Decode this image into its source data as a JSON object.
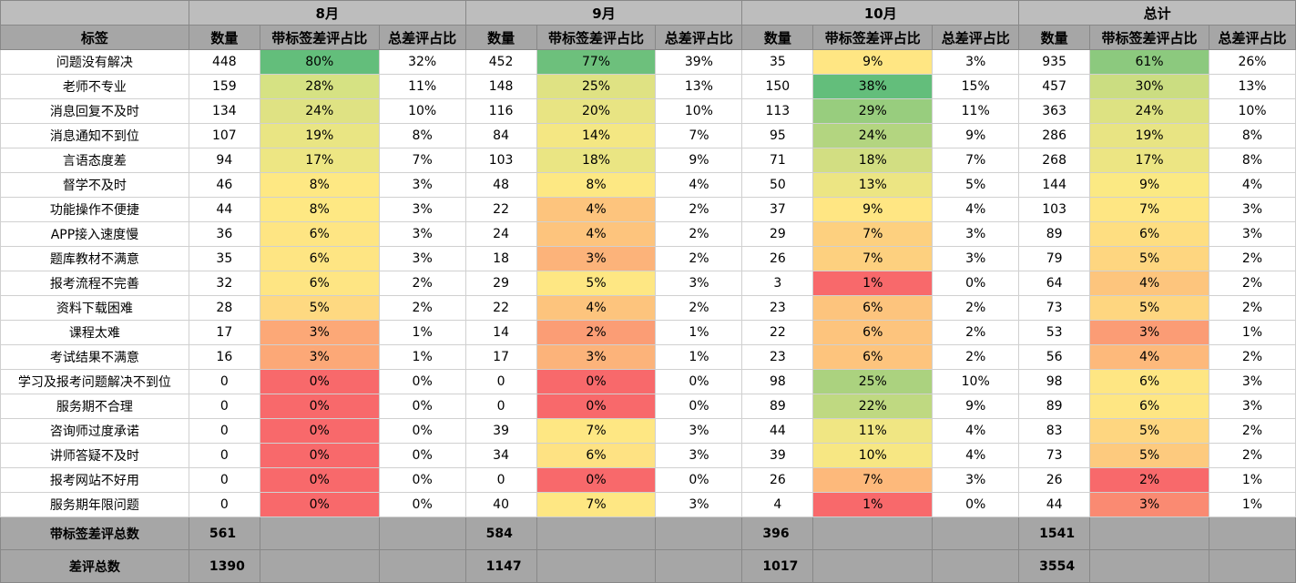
{
  "headers": {
    "months": [
      "8月",
      "9月",
      "10月",
      "总计"
    ],
    "label_col": "标签",
    "sub_cols": [
      "数量",
      "带标签差评占比",
      "总差评占比"
    ]
  },
  "rows": [
    {
      "label": "问题没有解决",
      "cells": [
        [
          "448",
          "80%",
          "32%"
        ],
        [
          "452",
          "77%",
          "39%"
        ],
        [
          "35",
          "9%",
          "3%"
        ],
        [
          "935",
          "61%",
          "26%"
        ]
      ],
      "colors": [
        "#63be7b",
        "#6dc07c",
        "#ffe683",
        "#8cc97e"
      ]
    },
    {
      "label": "老师不专业",
      "cells": [
        [
          "159",
          "28%",
          "11%"
        ],
        [
          "148",
          "25%",
          "13%"
        ],
        [
          "150",
          "38%",
          "15%"
        ],
        [
          "457",
          "30%",
          "13%"
        ]
      ],
      "colors": [
        "#d6e283",
        "#dfe283",
        "#63be7b",
        "#cbdd81"
      ]
    },
    {
      "label": "消息回复不及时",
      "cells": [
        [
          "134",
          "24%",
          "10%"
        ],
        [
          "116",
          "20%",
          "10%"
        ],
        [
          "113",
          "29%",
          "11%"
        ],
        [
          "363",
          "24%",
          "10%"
        ]
      ],
      "colors": [
        "#dfe283",
        "#e8e483",
        "#98cd7e",
        "#dde282"
      ]
    },
    {
      "label": "消息通知不到位",
      "cells": [
        [
          "107",
          "19%",
          "8%"
        ],
        [
          "84",
          "14%",
          "7%"
        ],
        [
          "95",
          "24%",
          "9%"
        ],
        [
          "286",
          "19%",
          "8%"
        ]
      ],
      "colors": [
        "#e9e583",
        "#f4e783",
        "#b3d580",
        "#e8e483"
      ]
    },
    {
      "label": "言语态度差",
      "cells": [
        [
          "94",
          "17%",
          "7%"
        ],
        [
          "103",
          "18%",
          "9%"
        ],
        [
          "71",
          "18%",
          "7%"
        ],
        [
          "268",
          "17%",
          "8%"
        ]
      ],
      "colors": [
        "#ede683",
        "#eae583",
        "#d2de82",
        "#ece583"
      ]
    },
    {
      "label": "督学不及时",
      "cells": [
        [
          "46",
          "8%",
          "3%"
        ],
        [
          "48",
          "8%",
          "4%"
        ],
        [
          "50",
          "13%",
          "5%"
        ],
        [
          "144",
          "9%",
          "4%"
        ]
      ],
      "colors": [
        "#fee883",
        "#fde883",
        "#ece583",
        "#fbe983"
      ]
    },
    {
      "label": "功能操作不便捷",
      "cells": [
        [
          "44",
          "8%",
          "3%"
        ],
        [
          "22",
          "4%",
          "2%"
        ],
        [
          "37",
          "9%",
          "4%"
        ],
        [
          "103",
          "7%",
          "3%"
        ]
      ],
      "colors": [
        "#fee883",
        "#fdc47d",
        "#ffe683",
        "#fee683"
      ]
    },
    {
      "label": "APP接入速度慢",
      "cells": [
        [
          "36",
          "6%",
          "3%"
        ],
        [
          "24",
          "4%",
          "2%"
        ],
        [
          "29",
          "7%",
          "3%"
        ],
        [
          "89",
          "6%",
          "3%"
        ]
      ],
      "colors": [
        "#fee583",
        "#fdc47d",
        "#fdd07f",
        "#fede81"
      ]
    },
    {
      "label": "题库教材不满意",
      "cells": [
        [
          "35",
          "6%",
          "3%"
        ],
        [
          "18",
          "3%",
          "2%"
        ],
        [
          "26",
          "7%",
          "3%"
        ],
        [
          "79",
          "5%",
          "2%"
        ]
      ],
      "colors": [
        "#fee583",
        "#fcb37a",
        "#fdd07f",
        "#fed680"
      ]
    },
    {
      "label": "报考流程不完善",
      "cells": [
        [
          "32",
          "6%",
          "2%"
        ],
        [
          "29",
          "5%",
          "3%"
        ],
        [
          "3",
          "1%",
          "0%"
        ],
        [
          "64",
          "4%",
          "2%"
        ]
      ],
      "colors": [
        "#fee583",
        "#fee783",
        "#f8696b",
        "#fdc57d"
      ]
    },
    {
      "label": "资料下载困难",
      "cells": [
        [
          "28",
          "5%",
          "2%"
        ],
        [
          "22",
          "4%",
          "2%"
        ],
        [
          "23",
          "6%",
          "2%"
        ],
        [
          "73",
          "5%",
          "2%"
        ]
      ],
      "colors": [
        "#fed981",
        "#fdc47d",
        "#fdc47d",
        "#fed680"
      ]
    },
    {
      "label": "课程太难",
      "cells": [
        [
          "17",
          "3%",
          "1%"
        ],
        [
          "14",
          "2%",
          "1%"
        ],
        [
          "22",
          "6%",
          "2%"
        ],
        [
          "53",
          "3%",
          "1%"
        ]
      ],
      "colors": [
        "#fca877",
        "#fb9d75",
        "#fdc47d",
        "#fb9c75"
      ]
    },
    {
      "label": "考试结果不满意",
      "cells": [
        [
          "16",
          "3%",
          "1%"
        ],
        [
          "17",
          "3%",
          "1%"
        ],
        [
          "23",
          "6%",
          "2%"
        ],
        [
          "56",
          "4%",
          "2%"
        ]
      ],
      "colors": [
        "#fca877",
        "#fcb37a",
        "#fdc47d",
        "#fdb97b"
      ]
    },
    {
      "label": "学习及报考问题解决不到位",
      "cells": [
        [
          "0",
          "0%",
          "0%"
        ],
        [
          "0",
          "0%",
          "0%"
        ],
        [
          "98",
          "25%",
          "10%"
        ],
        [
          "98",
          "6%",
          "3%"
        ]
      ],
      "colors": [
        "#f8696b",
        "#f8696b",
        "#abd27f",
        "#fee683"
      ]
    },
    {
      "label": "服务期不合理",
      "cells": [
        [
          "0",
          "0%",
          "0%"
        ],
        [
          "0",
          "0%",
          "0%"
        ],
        [
          "89",
          "22%",
          "9%"
        ],
        [
          "89",
          "6%",
          "3%"
        ]
      ],
      "colors": [
        "#f8696b",
        "#f8696b",
        "#bfd981",
        "#fee683"
      ]
    },
    {
      "label": "咨询师过度承诺",
      "cells": [
        [
          "0",
          "0%",
          "0%"
        ],
        [
          "39",
          "7%",
          "3%"
        ],
        [
          "44",
          "11%",
          "4%"
        ],
        [
          "83",
          "5%",
          "2%"
        ]
      ],
      "colors": [
        "#f8696b",
        "#fee783",
        "#f0e683",
        "#fed680"
      ]
    },
    {
      "label": "讲师答疑不及时",
      "cells": [
        [
          "0",
          "0%",
          "0%"
        ],
        [
          "34",
          "6%",
          "3%"
        ],
        [
          "39",
          "10%",
          "4%"
        ],
        [
          "73",
          "5%",
          "2%"
        ]
      ],
      "colors": [
        "#f8696b",
        "#fee283",
        "#f7e783",
        "#fdca7e"
      ]
    },
    {
      "label": "报考网站不好用",
      "cells": [
        [
          "0",
          "0%",
          "0%"
        ],
        [
          "0",
          "0%",
          "0%"
        ],
        [
          "26",
          "7%",
          "3%"
        ],
        [
          "26",
          "2%",
          "1%"
        ]
      ],
      "colors": [
        "#f8696b",
        "#f8696b",
        "#fdb97b",
        "#f8696b"
      ]
    },
    {
      "label": "服务期年限问题",
      "cells": [
        [
          "0",
          "0%",
          "0%"
        ],
        [
          "40",
          "7%",
          "3%"
        ],
        [
          "4",
          "1%",
          "0%"
        ],
        [
          "44",
          "3%",
          "1%"
        ]
      ],
      "colors": [
        "#f8696b",
        "#fee783",
        "#f8696b",
        "#fa8a72"
      ]
    }
  ],
  "summary": [
    {
      "label": "带标签差评总数",
      "values": [
        "561",
        "584",
        "396",
        "1541"
      ]
    },
    {
      "label": "差评总数",
      "values": [
        "1390",
        "1147",
        "1017",
        "3554"
      ]
    }
  ]
}
